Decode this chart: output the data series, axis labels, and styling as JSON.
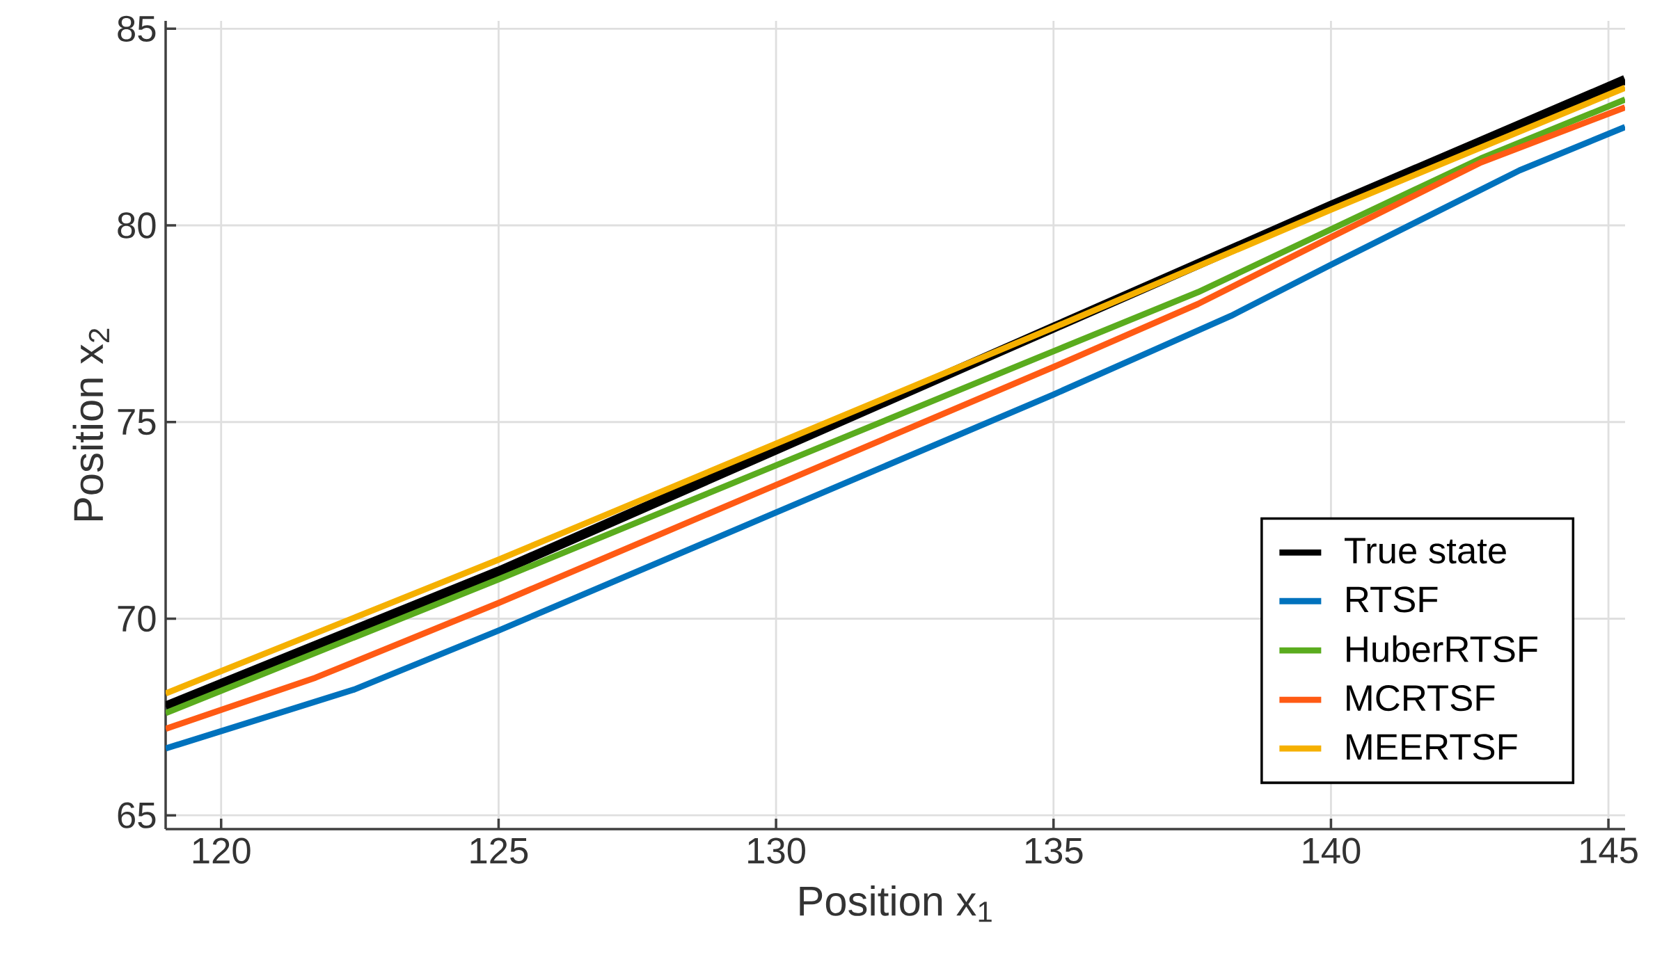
{
  "chart_data": {
    "type": "line",
    "xlabel": "Position x$_{1}$",
    "ylabel": "Position x$_{2}$",
    "xlim": [
      119,
      145.3
    ],
    "ylim": [
      64.65,
      85.2
    ],
    "xticks": [
      120,
      125,
      130,
      135,
      140,
      145
    ],
    "yticks": [
      65,
      70,
      75,
      80,
      85
    ],
    "grid": true,
    "legend": "bottom right",
    "marker": "none",
    "line_style": "solid",
    "series": [
      {
        "name": "True state",
        "color": "#000000",
        "x": [
          119,
          125,
          130,
          135,
          140,
          145.3
        ],
        "values": [
          67.77,
          71.2,
          74.3,
          77.4,
          80.5,
          83.7
        ]
      },
      {
        "name": "RTSF",
        "color": "#0072bd",
        "x": [
          119,
          122.4,
          125,
          130,
          135,
          138.2,
          140,
          143.4,
          145.3
        ],
        "values": [
          66.7,
          68.2,
          69.7,
          72.7,
          75.7,
          77.7,
          79.0,
          81.4,
          82.5
        ]
      },
      {
        "name": "HuberRTSF",
        "color": "#5aac1e",
        "x": [
          119,
          125,
          130,
          135,
          137.6,
          140,
          142.7,
          145.3
        ],
        "values": [
          67.6,
          71.0,
          73.9,
          76.8,
          78.3,
          79.9,
          81.7,
          83.2
        ]
      },
      {
        "name": "MCRTSF",
        "color": "#ff5a14",
        "x": [
          119,
          121.7,
          125,
          130,
          135,
          137.6,
          140,
          142.7,
          145.3
        ],
        "values": [
          67.2,
          68.5,
          70.4,
          73.4,
          76.4,
          78.0,
          79.7,
          81.6,
          83.0
        ]
      },
      {
        "name": "MEERTSF",
        "color": "#f5b000",
        "x": [
          119,
          125,
          130,
          135,
          140,
          145.3
        ],
        "values": [
          68.1,
          71.5,
          74.45,
          77.4,
          80.4,
          83.5
        ]
      }
    ]
  }
}
